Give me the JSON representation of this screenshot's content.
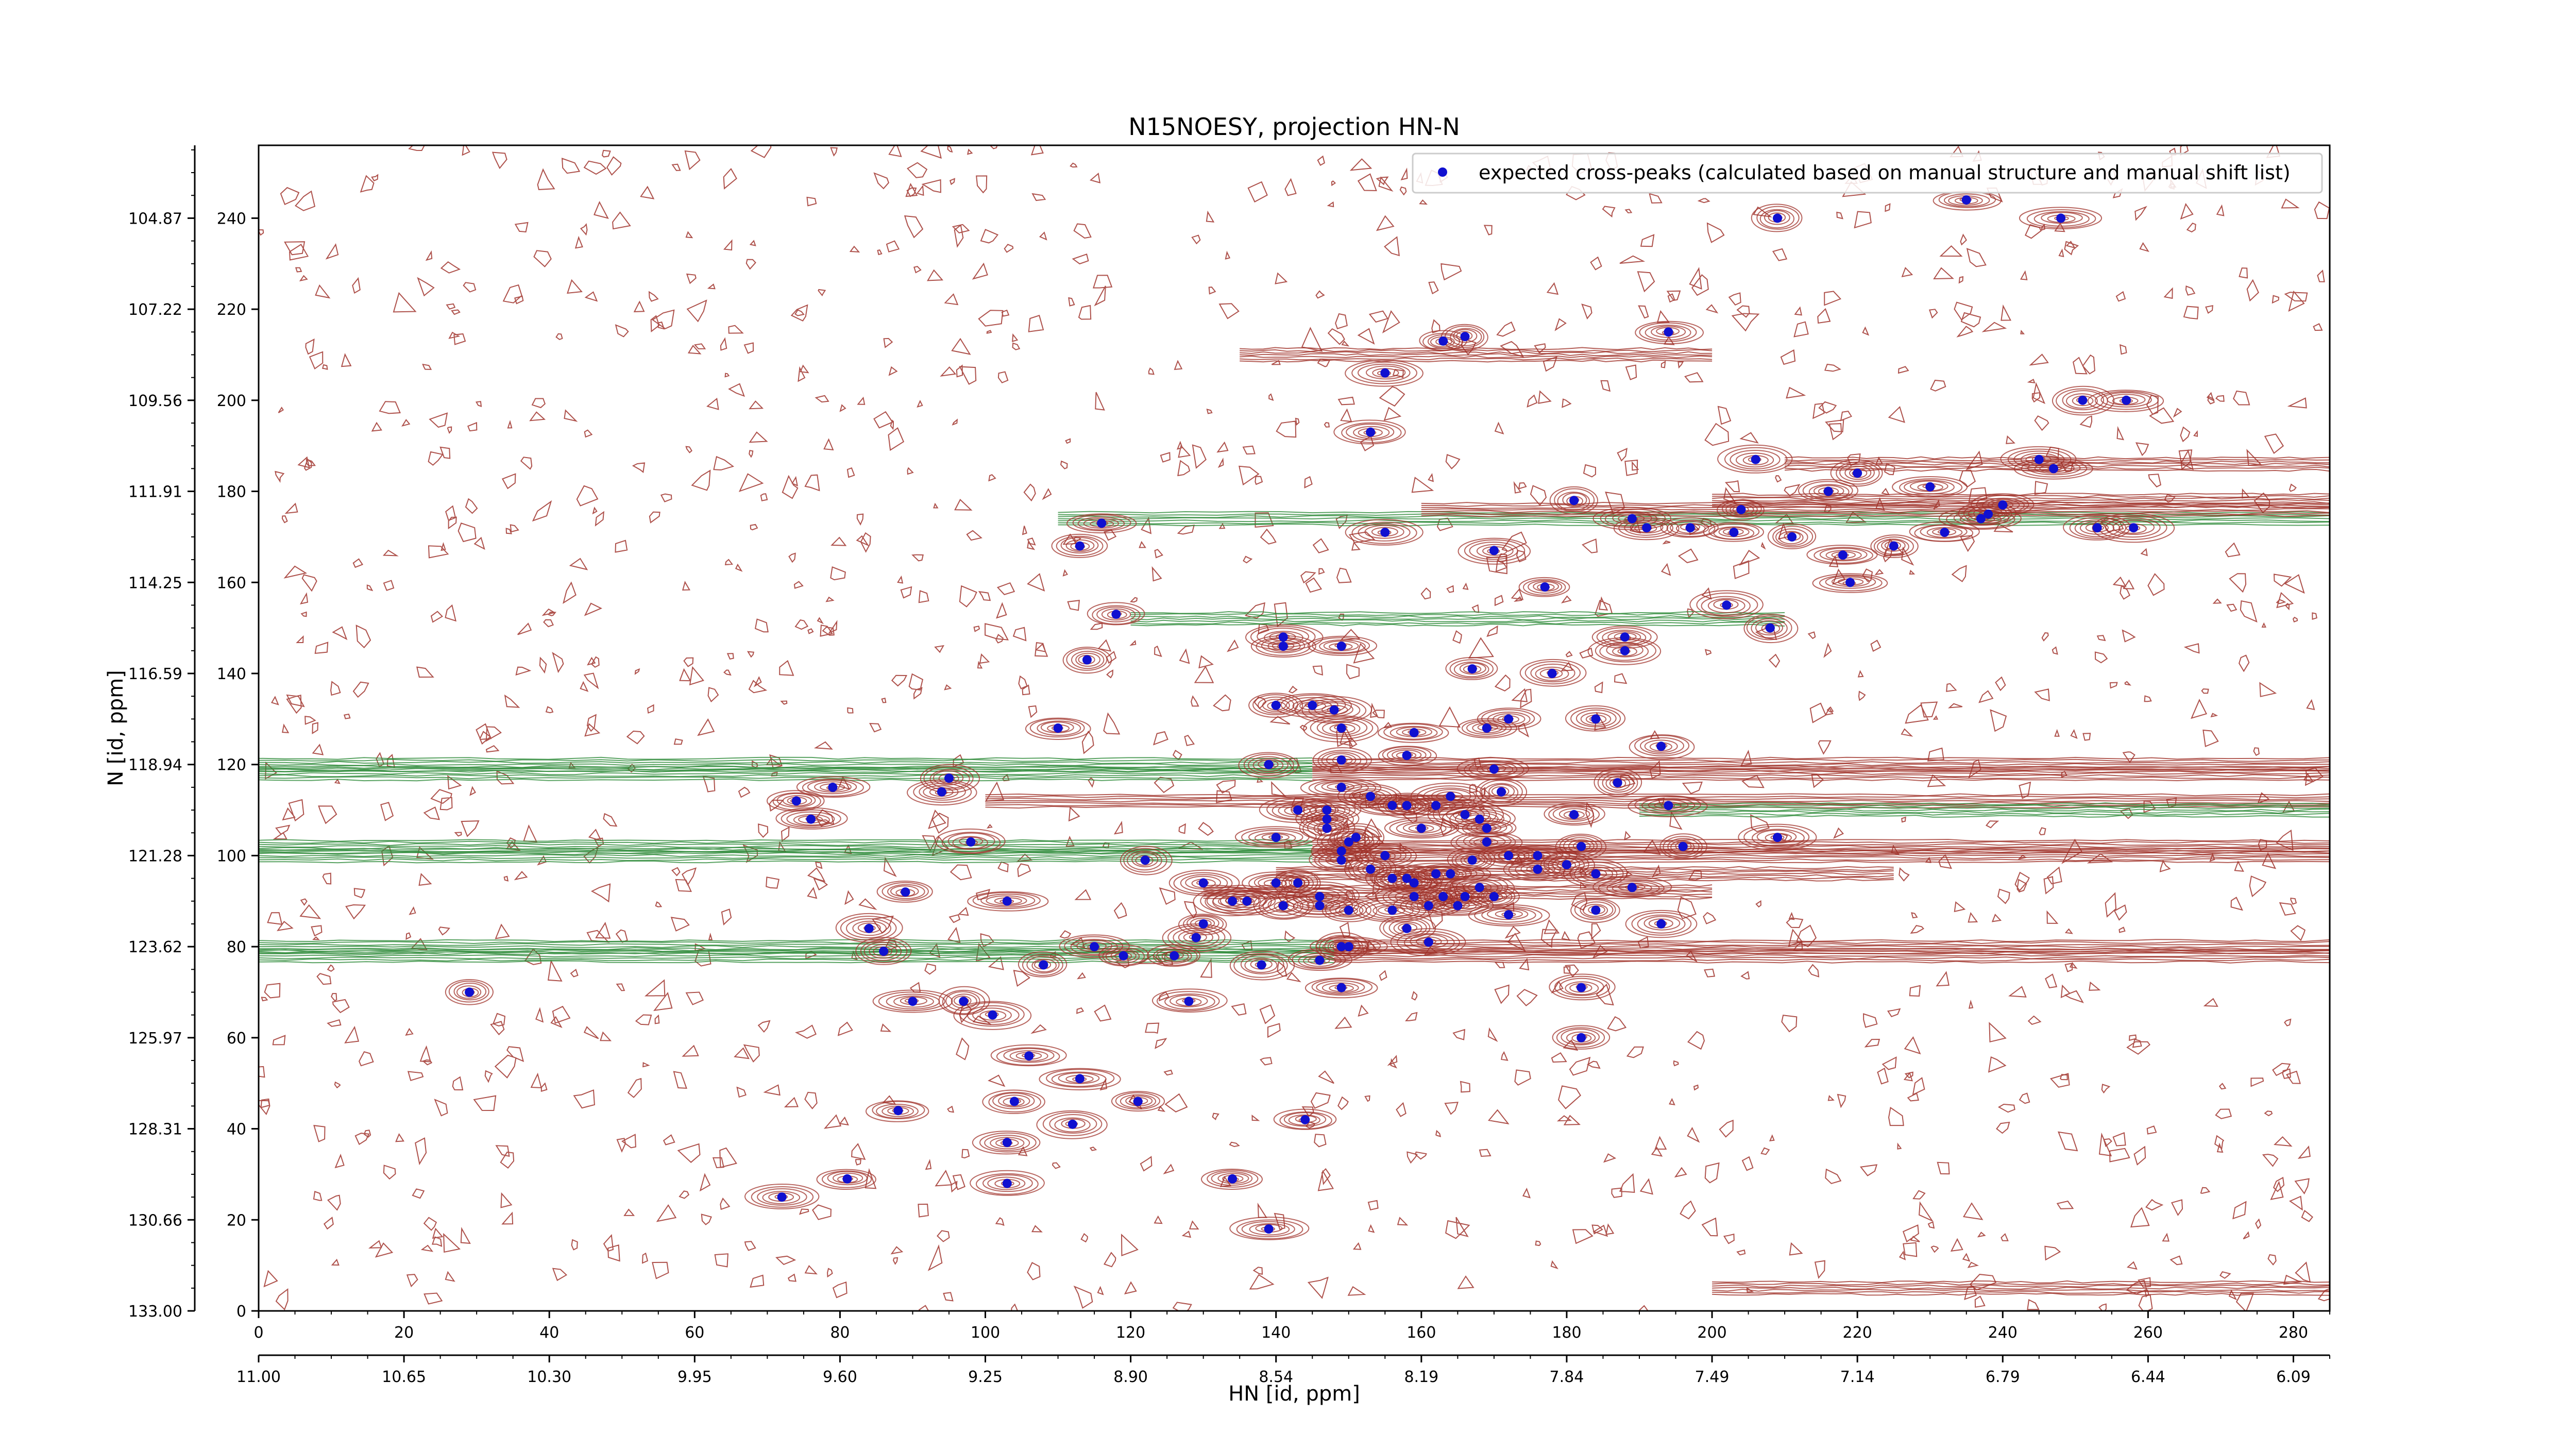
{
  "chart_data": {
    "type": "scatter",
    "title": "N15NOESY, projection HN-N",
    "xlabel": "HN [id, ppm]",
    "ylabel": "N [id, ppm]",
    "xlim": [
      0,
      285
    ],
    "ylim": [
      0,
      256
    ],
    "grid": false,
    "legend_position": "top-right",
    "legend": [
      "expected cross-peaks (calculated based on manual structure and manual shift list)"
    ],
    "x_ticks_bottom": [
      "0",
      "20",
      "40",
      "60",
      "80",
      "100",
      "120",
      "140",
      "160",
      "180",
      "200",
      "220",
      "240",
      "260",
      "280"
    ],
    "x_ticks_ppm": [
      "11.00",
      "10.65",
      "10.30",
      "9.95",
      "9.60",
      "9.25",
      "8.90",
      "8.54",
      "8.19",
      "7.84",
      "7.49",
      "7.14",
      "6.79",
      "6.44",
      "6.09"
    ],
    "y_ticks_left": [
      "0",
      "20",
      "40",
      "60",
      "80",
      "100",
      "120",
      "140",
      "160",
      "180",
      "200",
      "220",
      "240"
    ],
    "y_ticks_ppm": [
      "133.00",
      "130.66",
      "128.31",
      "125.97",
      "123.62",
      "121.28",
      "118.94",
      "116.59",
      "114.25",
      "111.91",
      "109.56",
      "107.22",
      "104.87"
    ],
    "colors": {
      "positive_contours": "#a0332b",
      "negative_contours": "#2e8b3a",
      "peaks": "#1010d0"
    },
    "series": [
      {
        "name": "expected cross-peaks (calculated based on manual structure and manual shift list)",
        "points": [
          [
            209,
            240
          ],
          [
            235,
            244
          ],
          [
            248,
            240
          ],
          [
            194,
            215
          ],
          [
            166,
            214
          ],
          [
            163,
            213
          ],
          [
            155,
            206
          ],
          [
            153,
            193
          ],
          [
            251,
            200
          ],
          [
            257,
            200
          ],
          [
            245,
            187
          ],
          [
            247,
            185
          ],
          [
            206,
            187
          ],
          [
            220,
            184
          ],
          [
            216,
            180
          ],
          [
            230,
            181
          ],
          [
            204,
            176
          ],
          [
            181,
            178
          ],
          [
            189,
            174
          ],
          [
            191,
            172
          ],
          [
            197,
            172
          ],
          [
            240,
            177
          ],
          [
            238,
            175
          ],
          [
            253,
            172
          ],
          [
            258,
            172
          ],
          [
            225,
            168
          ],
          [
            237,
            174
          ],
          [
            232,
            171
          ],
          [
            155,
            171
          ],
          [
            203,
            171
          ],
          [
            211,
            170
          ],
          [
            218,
            166
          ],
          [
            219,
            160
          ],
          [
            170,
            167
          ],
          [
            177,
            159
          ],
          [
            202,
            155
          ],
          [
            208,
            150
          ],
          [
            116,
            173
          ],
          [
            113,
            168
          ],
          [
            118,
            153
          ],
          [
            188,
            148
          ],
          [
            188,
            145
          ],
          [
            141,
            148
          ],
          [
            141,
            146
          ],
          [
            149,
            146
          ],
          [
            114,
            143
          ],
          [
            167,
            141
          ],
          [
            178,
            140
          ],
          [
            140,
            133
          ],
          [
            145,
            133
          ],
          [
            148,
            132
          ],
          [
            149,
            128
          ],
          [
            172,
            130
          ],
          [
            159,
            127
          ],
          [
            169,
            128
          ],
          [
            184,
            130
          ],
          [
            110,
            128
          ],
          [
            149,
            121
          ],
          [
            158,
            122
          ],
          [
            193,
            124
          ],
          [
            79,
            115
          ],
          [
            187,
            116
          ],
          [
            95,
            117
          ],
          [
            139,
            120
          ],
          [
            170,
            119
          ],
          [
            149,
            115
          ],
          [
            164,
            113
          ],
          [
            171,
            114
          ],
          [
            153,
            113
          ],
          [
            156,
            111
          ],
          [
            158,
            111
          ],
          [
            143,
            110
          ],
          [
            147,
            110
          ],
          [
            147,
            108
          ],
          [
            162,
            111
          ],
          [
            166,
            109
          ],
          [
            181,
            109
          ],
          [
            194,
            111
          ],
          [
            76,
            108
          ],
          [
            74,
            112
          ],
          [
            94,
            114
          ],
          [
            98,
            103
          ],
          [
            147,
            106
          ],
          [
            151,
            104
          ],
          [
            160,
            106
          ],
          [
            168,
            108
          ],
          [
            169,
            103
          ],
          [
            169,
            106
          ],
          [
            180,
            98
          ],
          [
            149,
            101
          ],
          [
            150,
            103
          ],
          [
            149,
            99
          ],
          [
            155,
            100
          ],
          [
            156,
            95
          ],
          [
            167,
            99
          ],
          [
            172,
            100
          ],
          [
            162,
            96
          ],
          [
            163,
            91
          ],
          [
            168,
            93
          ],
          [
            170,
            91
          ],
          [
            165,
            89
          ],
          [
            176,
            97
          ],
          [
            140,
            104
          ],
          [
            153,
            97
          ],
          [
            182,
            102
          ],
          [
            176,
            100
          ],
          [
            184,
            96
          ],
          [
            189,
            93
          ],
          [
            196,
            102
          ],
          [
            209,
            104
          ],
          [
            122,
            99
          ],
          [
            141,
            89
          ],
          [
            134,
            90
          ],
          [
            130,
            94
          ],
          [
            140,
            94
          ],
          [
            143,
            94
          ],
          [
            146,
            91
          ],
          [
            146,
            89
          ],
          [
            159,
            94
          ],
          [
            158,
            95
          ],
          [
            159,
            91
          ],
          [
            164,
            96
          ],
          [
            166,
            91
          ],
          [
            89,
            92
          ],
          [
            103,
            90
          ],
          [
            130,
            85
          ],
          [
            129,
            82
          ],
          [
            136,
            90
          ],
          [
            150,
            88
          ],
          [
            156,
            88
          ],
          [
            161,
            89
          ],
          [
            161,
            81
          ],
          [
            158,
            84
          ],
          [
            172,
            87
          ],
          [
            184,
            88
          ],
          [
            193,
            85
          ],
          [
            84,
            84
          ],
          [
            86,
            79
          ],
          [
            115,
            80
          ],
          [
            119,
            78
          ],
          [
            126,
            78
          ],
          [
            108,
            76
          ],
          [
            138,
            76
          ],
          [
            146,
            77
          ],
          [
            149,
            80
          ],
          [
            150,
            80
          ],
          [
            149,
            71
          ],
          [
            182,
            71
          ],
          [
            29,
            70
          ],
          [
            90,
            68
          ],
          [
            97,
            68
          ],
          [
            101,
            65
          ],
          [
            128,
            68
          ],
          [
            182,
            60
          ],
          [
            106,
            56
          ],
          [
            113,
            51
          ],
          [
            104,
            46
          ],
          [
            121,
            46
          ],
          [
            88,
            44
          ],
          [
            112,
            41
          ],
          [
            144,
            42
          ],
          [
            103,
            37
          ],
          [
            72,
            25
          ],
          [
            81,
            29
          ],
          [
            103,
            28
          ],
          [
            134,
            29
          ],
          [
            139,
            18
          ]
        ]
      }
    ]
  }
}
